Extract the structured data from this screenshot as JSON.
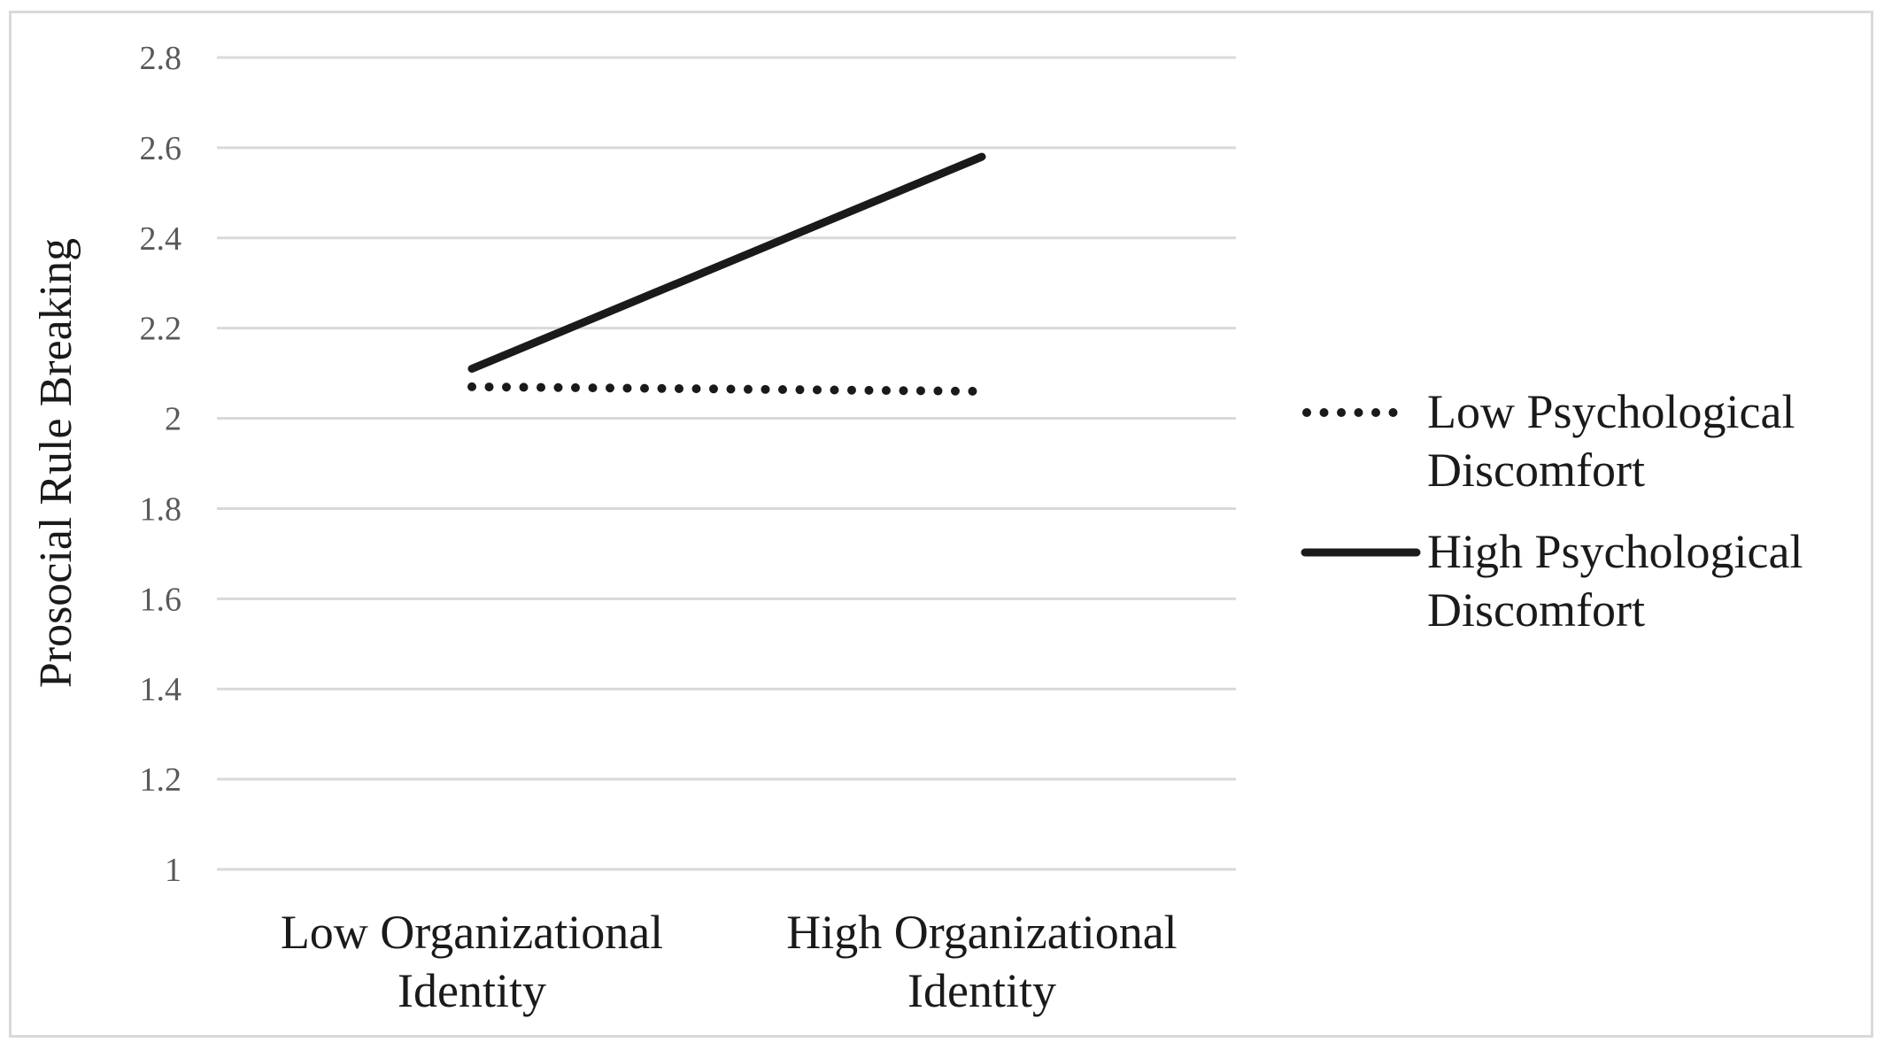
{
  "chart_data": {
    "type": "line",
    "title": "",
    "xlabel": "",
    "ylabel": "Prosocial Rule Breaking",
    "categories": [
      [
        "Low Organizational",
        "Identity"
      ],
      [
        "High Organizational",
        "Identity"
      ]
    ],
    "ylim": [
      1,
      2.8
    ],
    "yticks": [
      1,
      1.2,
      1.4,
      1.6,
      1.8,
      2,
      2.2,
      2.4,
      2.6,
      2.8
    ],
    "ytick_labels": [
      "1",
      "1.2",
      "1.4",
      "1.6",
      "1.8",
      "2",
      "2.2",
      "2.4",
      "2.6",
      "2.8"
    ],
    "grid": true,
    "legend_position": "right",
    "series": [
      {
        "name_lines": [
          "Low Psychological",
          "Discomfort"
        ],
        "values": [
          2.07,
          2.06
        ],
        "style": "dotted",
        "color": "#1a1a1a"
      },
      {
        "name_lines": [
          "High Psychological",
          "Discomfort"
        ],
        "values": [
          2.11,
          2.58
        ],
        "style": "solid",
        "color": "#1a1a1a"
      }
    ]
  }
}
